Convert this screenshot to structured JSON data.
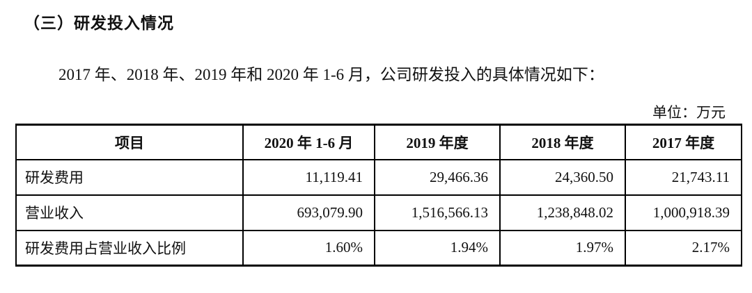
{
  "page": {
    "heading": "（三）研发投入情况",
    "intro": "2017 年、2018 年、2019 年和 2020 年 1-6 月，公司研发投入的具体情况如下：",
    "unit_label": "单位：万元"
  },
  "colors": {
    "text": "#111111",
    "border": "#000000",
    "background": "#ffffff"
  },
  "chart_data": {
    "type": "table",
    "title": "研发投入情况",
    "unit": "万元",
    "headers": [
      "项目",
      "2020 年 1-6 月",
      "2019 年度",
      "2018 年度",
      "2017 年度"
    ],
    "rows": [
      {
        "label": "研发费用",
        "values": [
          "11,119.41",
          "29,466.36",
          "24,360.50",
          "21,743.11"
        ]
      },
      {
        "label": "营业收入",
        "values": [
          "693,079.90",
          "1,516,566.13",
          "1,238,848.02",
          "1,000,918.39"
        ]
      },
      {
        "label": "研发费用占营业收入比例",
        "values": [
          "1.60%",
          "1.94%",
          "1.97%",
          "2.17%"
        ]
      }
    ]
  }
}
